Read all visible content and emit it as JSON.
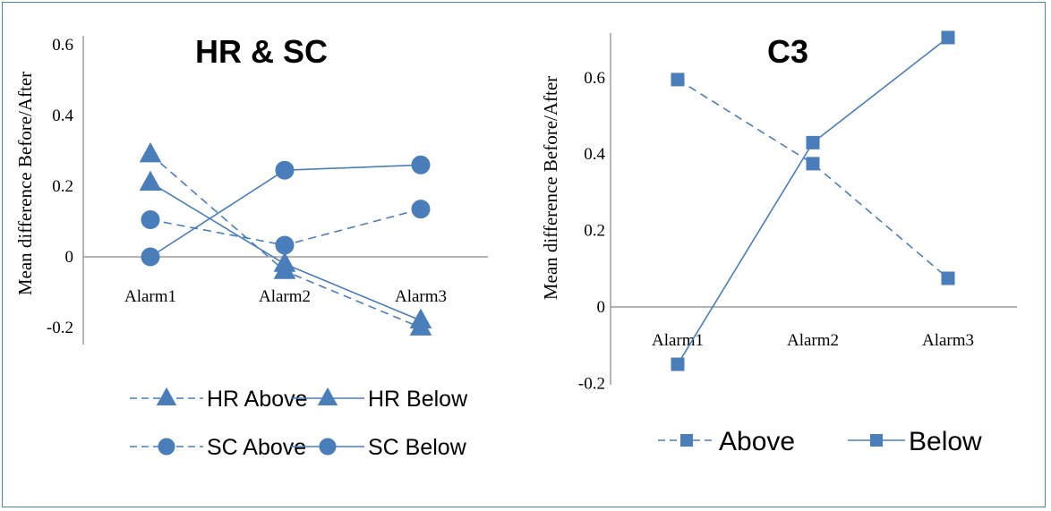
{
  "chart_data": [
    {
      "type": "line",
      "title": "HR & SC",
      "xlabel": "",
      "ylabel": "Mean difference Before/After",
      "categories": [
        "Alarm1",
        "Alarm2",
        "Alarm3"
      ],
      "yticks": [
        "-0.2",
        "0",
        "0.2",
        "0.4",
        "0.6"
      ],
      "ylim": [
        -0.2,
        0.6
      ],
      "grid": false,
      "legend_position": "bottom",
      "series": [
        {
          "name": "HR Above",
          "values": [
            0.29,
            -0.04,
            -0.2
          ],
          "marker": "triangle",
          "dash": true
        },
        {
          "name": "HR Below",
          "values": [
            0.21,
            -0.02,
            -0.18
          ],
          "marker": "triangle",
          "dash": false
        },
        {
          "name": "SC Above",
          "values": [
            0.105,
            0.033,
            0.135
          ],
          "marker": "circle",
          "dash": true
        },
        {
          "name": "SC Below",
          "values": [
            0.0,
            0.245,
            0.26
          ],
          "marker": "circle",
          "dash": false
        }
      ]
    },
    {
      "type": "line",
      "title": "C3",
      "xlabel": "",
      "ylabel": "Mean difference Before/After",
      "categories": [
        "Alarm1",
        "Alarm2",
        "Alarm3"
      ],
      "yticks": [
        "-0.2",
        "0",
        "0.2",
        "0.4",
        "0.6"
      ],
      "ylim": [
        -0.2,
        0.7
      ],
      "grid": false,
      "legend_position": "bottom",
      "series": [
        {
          "name": "Above",
          "values": [
            0.595,
            0.375,
            0.075
          ],
          "marker": "square",
          "dash": true
        },
        {
          "name": "Below",
          "values": [
            -0.15,
            0.43,
            0.705
          ],
          "marker": "square",
          "dash": false
        }
      ]
    }
  ],
  "colors": {
    "series": "#4a7ebb",
    "axis": "#868686",
    "frame": "#4f81bd"
  }
}
